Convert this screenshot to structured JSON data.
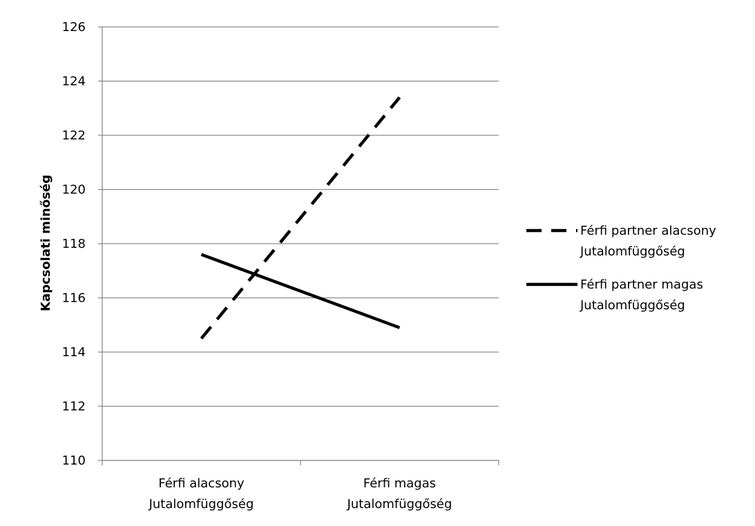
{
  "chart_data": {
    "type": "line",
    "title": "",
    "xlabel": "",
    "ylabel": "Kapcsolati minőség",
    "ylim": [
      110,
      126
    ],
    "ytick_step": 2,
    "y_ticks": [
      "110",
      "112",
      "114",
      "116",
      "118",
      "120",
      "122",
      "124",
      "126"
    ],
    "grid": true,
    "legend_position": "right",
    "categories": [
      [
        "Férfi alacsony",
        "Jutalomfüggőség"
      ],
      [
        "Férfi magas",
        "Jutalomfüggőség"
      ]
    ],
    "series": [
      {
        "name": [
          "Férfi partner alacsony",
          "Jutalomfüggőség"
        ],
        "line_style": "dashed",
        "color": "#000000",
        "values": [
          114.5,
          123.4
        ]
      },
      {
        "name": [
          "Férfi partner magas",
          "Jutalomfüggőség"
        ],
        "line_style": "solid",
        "color": "#000000",
        "values": [
          117.6,
          114.9
        ]
      }
    ]
  }
}
